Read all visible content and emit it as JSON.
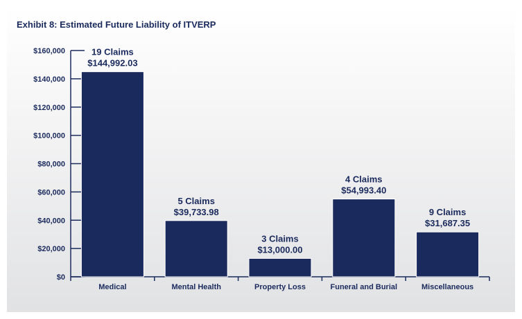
{
  "chart_data": {
    "type": "bar",
    "title": "Exhibit 8: Estimated Future Liability of ITVERP",
    "categories": [
      "Medical",
      "Mental Health",
      "Property Loss",
      "Funeral and Burial",
      "Miscellaneous"
    ],
    "values": [
      144992.03,
      39733.98,
      13000.0,
      54993.4,
      31687.35
    ],
    "claims_labels": [
      "19 Claims",
      "5 Claims",
      "3 Claims",
      "4 Claims",
      "9 Claims"
    ],
    "value_labels": [
      "$144,992.03",
      "$39,733.98",
      "$13,000.00",
      "$54,993.40",
      "$31,687.35"
    ],
    "y_ticks": [
      "$0",
      "$20,000",
      "$40,000",
      "$60,000",
      "$80,000",
      "$100,000",
      "$120,000",
      "$140,000",
      "$160,000"
    ],
    "ylim": [
      0,
      160000
    ],
    "grid": false,
    "bar_color": "#1a2a5c"
  }
}
